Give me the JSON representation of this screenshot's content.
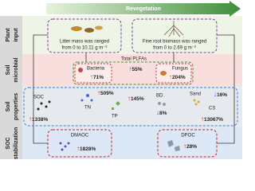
{
  "header": {
    "title": "Revegetation"
  },
  "rows": [
    {
      "label": [
        "Plant",
        "input"
      ]
    },
    {
      "label": [
        "Soil",
        "microbial"
      ]
    },
    {
      "label": [
        "Soil",
        "properties"
      ]
    },
    {
      "label": [
        "SOC",
        "stabilization"
      ]
    }
  ],
  "plant": {
    "litter": [
      "Litter mass was ranged",
      "from 0 to 10.11 g m⁻²"
    ],
    "root": [
      "Fine root biomass was ranged",
      "from 0 to 2.69 g m⁻²"
    ]
  },
  "nodes": [
    {
      "label": "Total PLFAs",
      "arrow": "↑",
      "change": "55%"
    },
    {
      "label": "Bacteria",
      "arrow": "↑",
      "change": "71%"
    },
    {
      "label": "Fungus",
      "arrow": "↑",
      "change": "204%"
    },
    {
      "label": "SOC",
      "arrow": "↑",
      "change": "1338%"
    },
    {
      "label": "TN",
      "arrow": "↑",
      "change": "509%"
    },
    {
      "label": "TP",
      "arrow": "↑",
      "change": "145%"
    },
    {
      "label": "BD",
      "arrow": "↓",
      "change": "8%"
    },
    {
      "label": "Sand",
      "arrow": "↓",
      "change": "16%"
    },
    {
      "label": "CS",
      "arrow": "↑",
      "change": "13067%"
    },
    {
      "label": "DMAOC",
      "arrow": "↑",
      "change": "1828%"
    },
    {
      "label": "DPOC",
      "arrow": "↑",
      "change": "28%"
    }
  ]
}
